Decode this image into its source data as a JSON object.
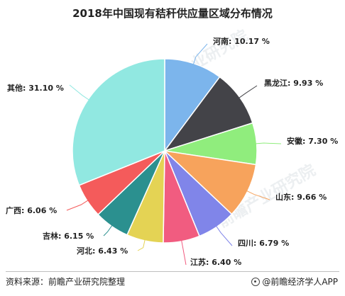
{
  "chart_data": {
    "type": "pie",
    "title": "2018年中国现有秸秆供应量区域分布情况",
    "slices": [
      {
        "label": "河南",
        "value": 10.17,
        "display": "河南: 10.17 %",
        "color": "#7cb5ec"
      },
      {
        "label": "黑龙江",
        "value": 9.93,
        "display": "黑龙江: 9.93 %",
        "color": "#434348"
      },
      {
        "label": "安徽",
        "value": 7.3,
        "display": "安徽: 7.30 %",
        "color": "#90ed7d"
      },
      {
        "label": "山东",
        "value": 9.66,
        "display": "山东: 9.66 %",
        "color": "#f7a35c"
      },
      {
        "label": "四川",
        "value": 6.79,
        "display": "四川: 6.79 %",
        "color": "#8085e9"
      },
      {
        "label": "江苏",
        "value": 6.4,
        "display": "江苏: 6.40 %",
        "color": "#f15c80"
      },
      {
        "label": "河北",
        "value": 6.43,
        "display": "河北: 6.43 %",
        "color": "#e4d354"
      },
      {
        "label": "吉林",
        "value": 6.15,
        "display": "吉林: 6.15 %",
        "color": "#2b908f"
      },
      {
        "label": "广西",
        "value": 6.06,
        "display": "广西: 6.06 %",
        "color": "#f45b5b"
      },
      {
        "label": "其他",
        "value": 31.1,
        "display": "其他: 31.10 %",
        "color": "#91e8e1"
      }
    ],
    "start": "top",
    "direction": "clockwise",
    "legend": "none",
    "data_labels": "outside with leader lines"
  },
  "footer": {
    "source": "资料来源：前瞻产业研究院整理",
    "brand": "@前瞻经济学人APP"
  },
  "watermark": {
    "text": "前瞻产业研究院"
  }
}
